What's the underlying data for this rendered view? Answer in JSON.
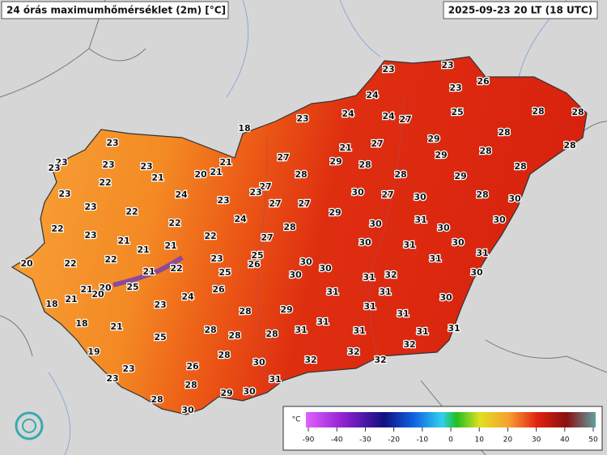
{
  "header": {
    "title": "24 órás maximumhőmérséklet (2m) [°C]",
    "timestamp": "2025-09-23 20 LT (18 UTC)"
  },
  "stations": {
    "values": [
      23,
      23,
      23,
      26,
      24,
      25,
      28,
      28,
      23,
      24,
      24,
      27,
      18,
      28,
      23,
      29,
      27,
      21,
      27,
      28,
      28,
      23,
      23,
      23,
      23,
      29,
      28,
      29,
      28,
      20,
      21,
      21,
      28,
      28,
      29,
      22,
      21,
      27,
      23,
      23,
      24,
      23,
      27,
      27,
      30,
      27,
      30,
      28,
      30,
      23,
      22,
      29,
      22,
      24,
      28,
      30,
      31,
      30,
      30,
      22,
      23,
      21,
      22,
      27,
      30,
      31,
      30,
      21,
      21,
      20,
      22,
      22,
      25,
      26,
      30,
      31,
      31,
      21,
      22,
      23,
      25,
      30,
      30,
      32,
      31,
      30,
      20,
      21,
      25,
      20,
      26,
      31,
      31,
      21,
      18,
      24,
      23,
      30,
      31,
      29,
      28,
      31,
      18,
      21,
      31,
      31,
      28,
      31,
      31,
      31,
      25,
      28,
      28,
      32,
      19,
      28,
      32,
      30,
      32,
      32,
      23,
      26,
      23,
      31,
      28,
      29,
      30,
      28,
      30
    ]
  },
  "colorbar": {
    "unit": "°C",
    "ticks": [
      -90,
      -40,
      -30,
      -20,
      -10,
      0,
      10,
      20,
      30,
      40,
      50
    ]
  }
}
